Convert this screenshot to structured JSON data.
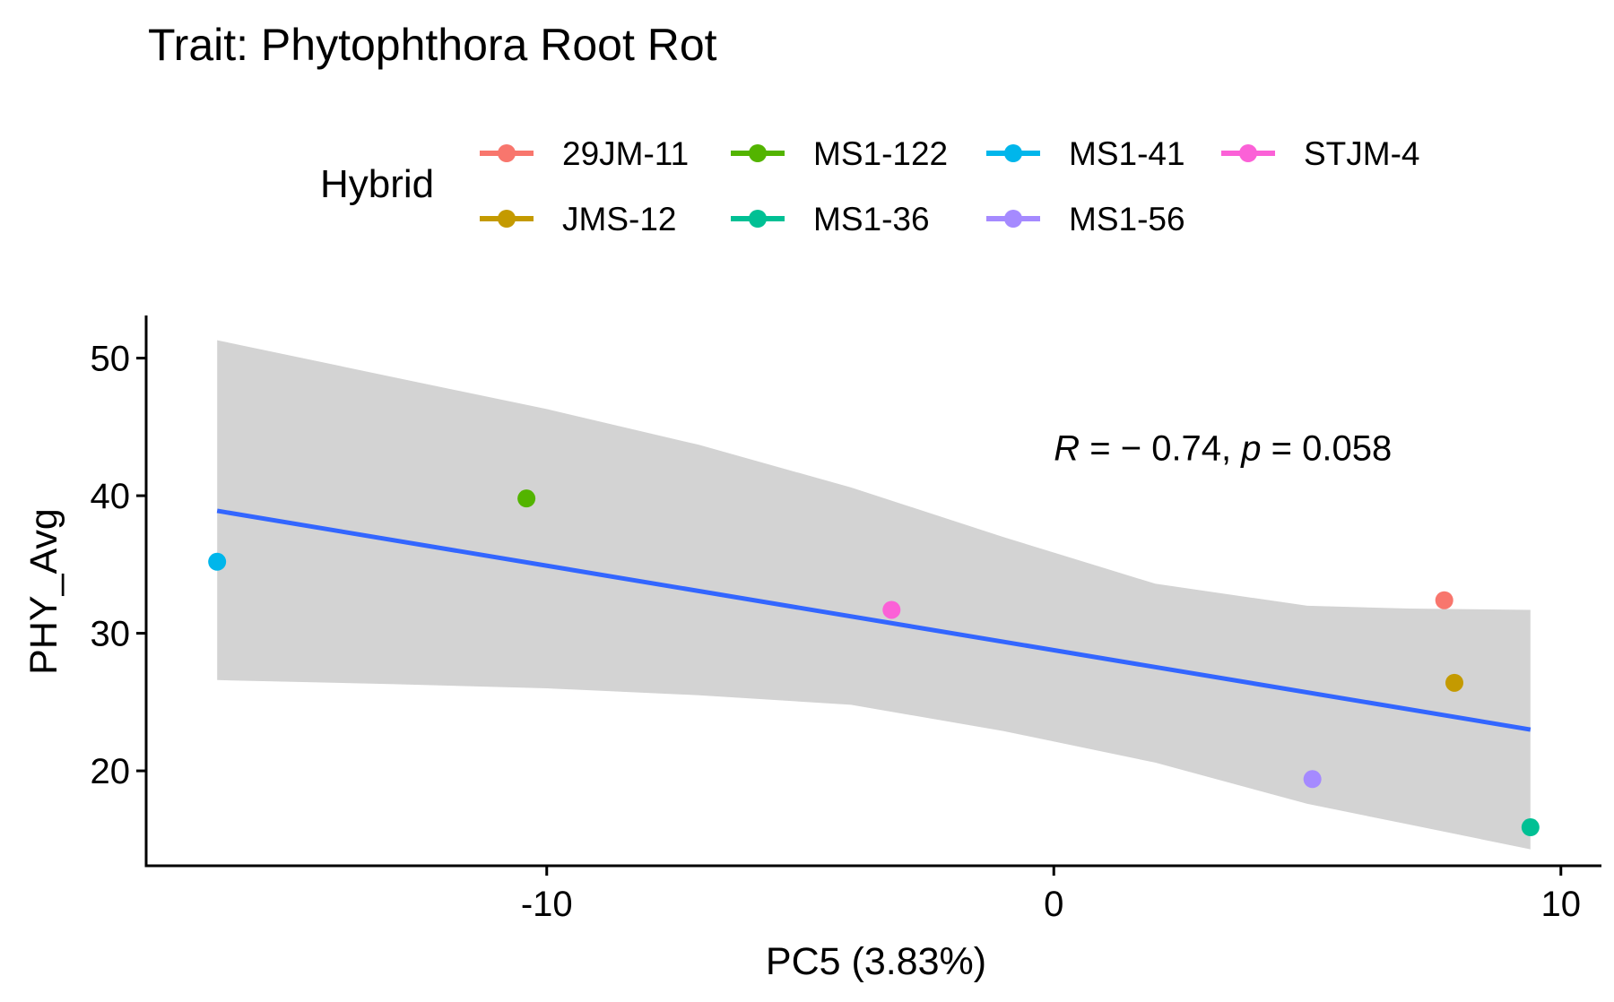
{
  "chart_data": {
    "type": "scatter",
    "title": "Trait: Phytophthora Root Rot",
    "xlabel": "PC5 (3.83%)",
    "ylabel": "PHY_Avg",
    "xlim": [
      -17.9,
      10.8
    ],
    "ylim": [
      13.1,
      53.1
    ],
    "x_ticks": [
      -10,
      0,
      10
    ],
    "x_tick_labels": [
      "-10",
      "0",
      "10"
    ],
    "y_ticks": [
      20,
      30,
      40,
      50
    ],
    "y_tick_labels": [
      "20",
      "30",
      "40",
      "50"
    ],
    "grid": false,
    "legend": {
      "title": "Hybrid",
      "position": "top",
      "entries": [
        {
          "name": "29JM-11",
          "color": "#F8766D"
        },
        {
          "name": "JMS-12",
          "color": "#C49A00"
        },
        {
          "name": "MS1-122",
          "color": "#53B400"
        },
        {
          "name": "MS1-36",
          "color": "#00C094"
        },
        {
          "name": "MS1-41",
          "color": "#00B6EB"
        },
        {
          "name": "MS1-56",
          "color": "#A58AFF"
        },
        {
          "name": "STJM-4",
          "color": "#FB61D7"
        }
      ]
    },
    "series": [
      {
        "name": "29JM-11",
        "x": 7.7,
        "y": 32.4
      },
      {
        "name": "JMS-12",
        "x": 7.9,
        "y": 26.4
      },
      {
        "name": "MS1-122",
        "x": -10.4,
        "y": 39.8
      },
      {
        "name": "MS1-36",
        "x": 9.4,
        "y": 15.9
      },
      {
        "name": "MS1-41",
        "x": -16.5,
        "y": 35.2
      },
      {
        "name": "MS1-56",
        "x": 5.1,
        "y": 19.4
      },
      {
        "name": "STJM-4",
        "x": -3.2,
        "y": 31.7
      }
    ],
    "regression": {
      "color": "#3366FF",
      "band_color": "#D3D3D3",
      "line": {
        "x": [
          -16.5,
          9.4
        ],
        "y": [
          38.9,
          23.0
        ]
      },
      "band": {
        "x": [
          -16.5,
          -13.0,
          -10.0,
          -7.0,
          -4.0,
          -1.0,
          2.0,
          5.0,
          7.0,
          9.4
        ],
        "upper": [
          51.3,
          48.6,
          46.3,
          43.7,
          40.6,
          37.0,
          33.6,
          32.0,
          31.8,
          31.7
        ],
        "lower": [
          26.6,
          26.3,
          26.0,
          25.5,
          24.8,
          22.9,
          20.6,
          17.6,
          16.1,
          14.3
        ]
      }
    },
    "annotation": {
      "r_symbol": "R",
      "r_text": " = − 0.74, ",
      "p_symbol": "p",
      "p_text": " = 0.058",
      "x": 0.0,
      "y": 43.5
    }
  }
}
